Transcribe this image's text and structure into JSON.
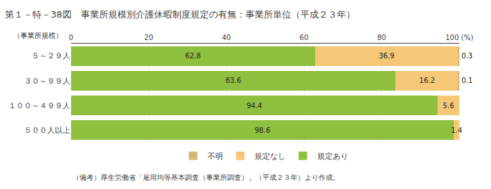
{
  "chart_data": {
    "type": "bar",
    "orientation": "horizontal",
    "stacked": true,
    "title": "第１－特－38図　事業所規模別介護休暇制度規定の有無：事業所単位（平成２３年）",
    "ylabel": "（事業所規模）",
    "footnote": "（備考）厚生労働省「雇用均等基本調査（事業所調査）」（平成２３年）より作成。",
    "categories": [
      "５～２９人",
      "３０～９９人",
      "１００～４９９人",
      "５００人以上"
    ],
    "series": [
      {
        "name": "規定あり",
        "color": "#90C040",
        "values": [
          62.8,
          83.6,
          94.4,
          98.6
        ]
      },
      {
        "name": "規定なし",
        "color": "#F5C878",
        "values": [
          36.9,
          16.2,
          5.6,
          1.4
        ]
      },
      {
        "name": "不明",
        "color": "#D4B87A",
        "values": [
          0.3,
          0.1,
          0.0,
          0.0
        ]
      }
    ],
    "xlim": [
      0,
      100
    ],
    "xticks": [
      0,
      20,
      40,
      60,
      80,
      {
        "value": 100,
        "label": "100 (%)"
      }
    ],
    "grid": true,
    "legend": "bottom",
    "data_labels": true
  }
}
